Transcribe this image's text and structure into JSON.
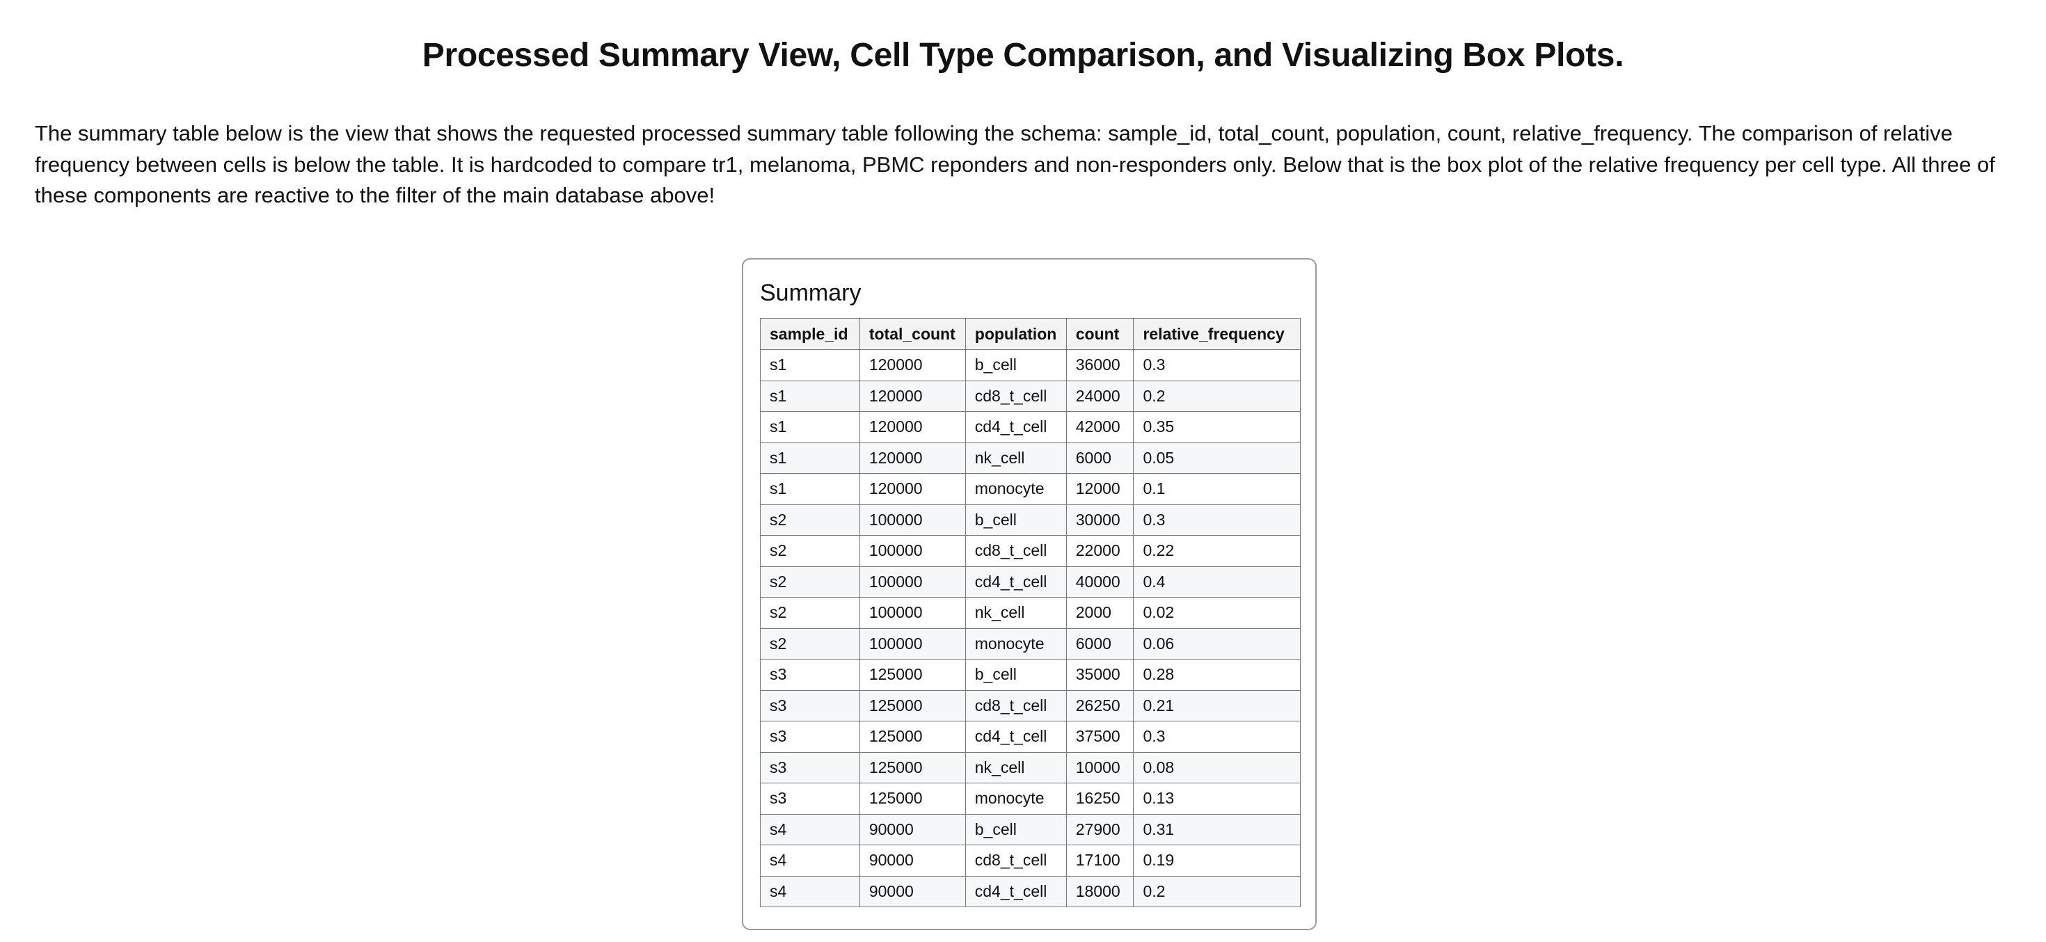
{
  "header": {
    "title": "Processed Summary View, Cell Type Comparison, and Visualizing Box Plots."
  },
  "intro": {
    "text": "The summary table below is the view that shows the requested processed summary table following the schema: sample_id, total_count, population, count, relative_frequency. The comparison of relative frequency between cells is below the table. It is hardcoded to compare tr1, melanoma, PBMC reponders and non-responders only. Below that is the box plot of the relative frequency per cell type. All three of these components are reactive to the filter of the main database above!"
  },
  "summary": {
    "title": "Summary",
    "columns": [
      "sample_id",
      "total_count",
      "population",
      "count",
      "relative_frequency"
    ],
    "rows": [
      [
        "s1",
        "120000",
        "b_cell",
        "36000",
        "0.3"
      ],
      [
        "s1",
        "120000",
        "cd8_t_cell",
        "24000",
        "0.2"
      ],
      [
        "s1",
        "120000",
        "cd4_t_cell",
        "42000",
        "0.35"
      ],
      [
        "s1",
        "120000",
        "nk_cell",
        "6000",
        "0.05"
      ],
      [
        "s1",
        "120000",
        "monocyte",
        "12000",
        "0.1"
      ],
      [
        "s2",
        "100000",
        "b_cell",
        "30000",
        "0.3"
      ],
      [
        "s2",
        "100000",
        "cd8_t_cell",
        "22000",
        "0.22"
      ],
      [
        "s2",
        "100000",
        "cd4_t_cell",
        "40000",
        "0.4"
      ],
      [
        "s2",
        "100000",
        "nk_cell",
        "2000",
        "0.02"
      ],
      [
        "s2",
        "100000",
        "monocyte",
        "6000",
        "0.06"
      ],
      [
        "s3",
        "125000",
        "b_cell",
        "35000",
        "0.28"
      ],
      [
        "s3",
        "125000",
        "cd8_t_cell",
        "26250",
        "0.21"
      ],
      [
        "s3",
        "125000",
        "cd4_t_cell",
        "37500",
        "0.3"
      ],
      [
        "s3",
        "125000",
        "nk_cell",
        "10000",
        "0.08"
      ],
      [
        "s3",
        "125000",
        "monocyte",
        "16250",
        "0.13"
      ],
      [
        "s4",
        "90000",
        "b_cell",
        "27900",
        "0.31"
      ],
      [
        "s4",
        "90000",
        "cd8_t_cell",
        "17100",
        "0.19"
      ],
      [
        "s4",
        "90000",
        "cd4_t_cell",
        "18000",
        "0.2"
      ]
    ]
  }
}
